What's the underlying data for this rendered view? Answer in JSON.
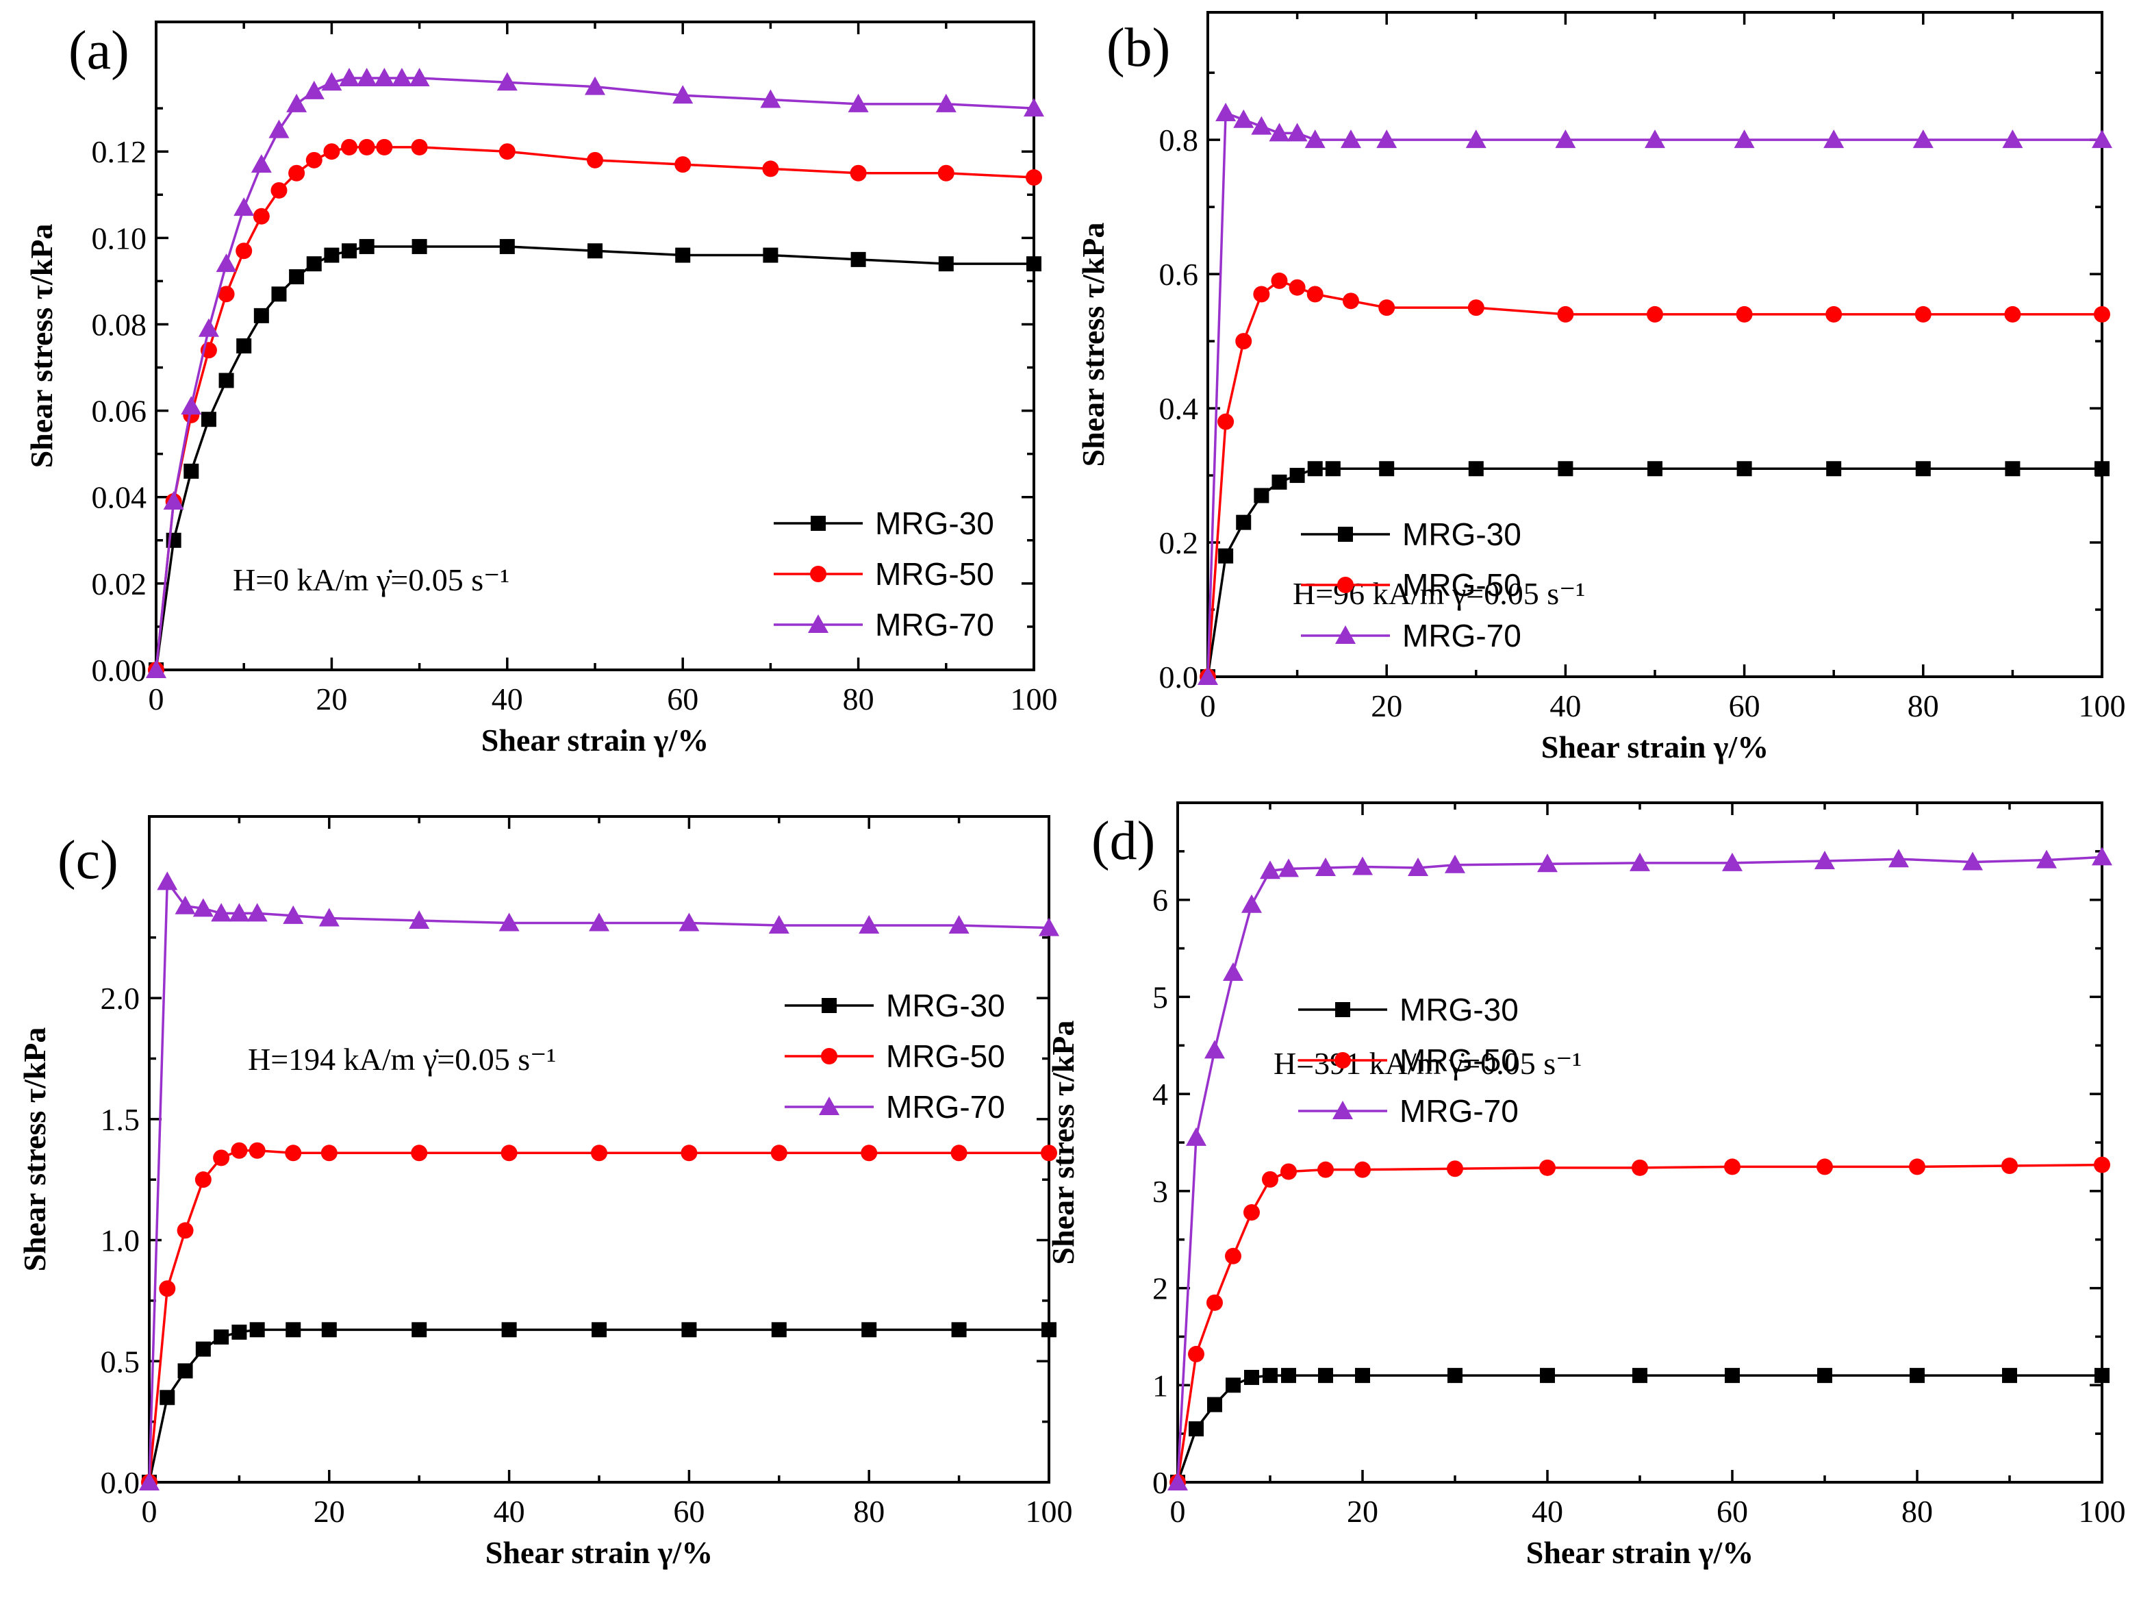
{
  "chart_data": [
    {
      "panel_label": "(a)",
      "type": "line",
      "xlabel": "Shear strain γ/%",
      "ylabel": "Shear stress τ/kPa",
      "xlim": [
        0,
        100
      ],
      "ylim": [
        0,
        0.15
      ],
      "xticks": [
        0,
        20,
        40,
        60,
        80,
        100
      ],
      "yticks": [
        0.0,
        0.02,
        0.04,
        0.06,
        0.08,
        0.1,
        0.12
      ],
      "ytick_decimals": 2,
      "annotation": "H=0 kA/m  γ̇=0.05 s⁻¹",
      "legend": [
        "MRG-30",
        "MRG-50",
        "MRG-70"
      ],
      "series": [
        {
          "name": "MRG-30",
          "color": "#000000",
          "marker": "square",
          "x": [
            0,
            2,
            4,
            6,
            8,
            10,
            12,
            14,
            16,
            18,
            20,
            22,
            24,
            30,
            40,
            50,
            60,
            70,
            80,
            90,
            100
          ],
          "y": [
            0.0,
            0.03,
            0.046,
            0.058,
            0.067,
            0.075,
            0.082,
            0.087,
            0.091,
            0.094,
            0.096,
            0.097,
            0.098,
            0.098,
            0.098,
            0.097,
            0.096,
            0.096,
            0.095,
            0.094,
            0.094
          ]
        },
        {
          "name": "MRG-50",
          "color": "#ff0000",
          "marker": "circle",
          "x": [
            0,
            2,
            4,
            6,
            8,
            10,
            12,
            14,
            16,
            18,
            20,
            22,
            24,
            26,
            30,
            40,
            50,
            60,
            70,
            80,
            90,
            100
          ],
          "y": [
            0.0,
            0.039,
            0.059,
            0.074,
            0.087,
            0.097,
            0.105,
            0.111,
            0.115,
            0.118,
            0.12,
            0.121,
            0.121,
            0.121,
            0.121,
            0.12,
            0.118,
            0.117,
            0.116,
            0.115,
            0.115,
            0.114
          ]
        },
        {
          "name": "MRG-70",
          "color": "#9932cc",
          "marker": "triangle",
          "x": [
            0,
            2,
            4,
            6,
            8,
            10,
            12,
            14,
            16,
            18,
            20,
            22,
            24,
            26,
            28,
            30,
            40,
            50,
            60,
            70,
            80,
            90,
            100
          ],
          "y": [
            0.0,
            0.039,
            0.061,
            0.079,
            0.094,
            0.107,
            0.117,
            0.125,
            0.131,
            0.134,
            0.136,
            0.137,
            0.137,
            0.137,
            0.137,
            0.137,
            0.136,
            0.135,
            0.133,
            0.132,
            0.131,
            0.131,
            0.13
          ]
        }
      ]
    },
    {
      "panel_label": "(b)",
      "type": "line",
      "xlabel": "Shear strain γ/%",
      "ylabel": "Shear stress τ/kPa",
      "xlim": [
        0,
        100
      ],
      "ylim": [
        0,
        0.99
      ],
      "xticks": [
        0,
        20,
        40,
        60,
        80,
        100
      ],
      "yticks": [
        0.0,
        0.2,
        0.4,
        0.6,
        0.8
      ],
      "ytick_decimals": 1,
      "annotation": "H=96 kA/m  γ̇=0.05 s⁻¹",
      "legend": [
        "MRG-30",
        "MRG-50",
        "MRG-70"
      ],
      "series": [
        {
          "name": "MRG-30",
          "color": "#000000",
          "marker": "square",
          "x": [
            0,
            2,
            4,
            6,
            8,
            10,
            12,
            14,
            20,
            30,
            40,
            50,
            60,
            70,
            80,
            90,
            100
          ],
          "y": [
            0.0,
            0.18,
            0.23,
            0.27,
            0.29,
            0.3,
            0.31,
            0.31,
            0.31,
            0.31,
            0.31,
            0.31,
            0.31,
            0.31,
            0.31,
            0.31,
            0.31
          ]
        },
        {
          "name": "MRG-50",
          "color": "#ff0000",
          "marker": "circle",
          "x": [
            0,
            2,
            4,
            6,
            8,
            10,
            12,
            16,
            20,
            30,
            40,
            50,
            60,
            70,
            80,
            90,
            100
          ],
          "y": [
            0.0,
            0.38,
            0.5,
            0.57,
            0.59,
            0.58,
            0.57,
            0.56,
            0.55,
            0.55,
            0.54,
            0.54,
            0.54,
            0.54,
            0.54,
            0.54,
            0.54
          ]
        },
        {
          "name": "MRG-70",
          "color": "#9932cc",
          "marker": "triangle",
          "x": [
            0,
            2,
            4,
            6,
            8,
            10,
            12,
            16,
            20,
            30,
            40,
            50,
            60,
            70,
            80,
            90,
            100
          ],
          "y": [
            0.0,
            0.84,
            0.83,
            0.82,
            0.81,
            0.81,
            0.8,
            0.8,
            0.8,
            0.8,
            0.8,
            0.8,
            0.8,
            0.8,
            0.8,
            0.8,
            0.8
          ]
        }
      ]
    },
    {
      "panel_label": "(c)",
      "type": "line",
      "xlabel": "Shear strain γ/%",
      "ylabel": "Shear stress τ/kPa",
      "xlim": [
        0,
        100
      ],
      "ylim": [
        0,
        2.75
      ],
      "xticks": [
        0,
        20,
        40,
        60,
        80,
        100
      ],
      "yticks": [
        0.0,
        0.5,
        1.0,
        1.5,
        2.0
      ],
      "ytick_decimals": 1,
      "annotation": "H=194 kA/m  γ̇=0.05 s⁻¹",
      "legend": [
        "MRG-30",
        "MRG-50",
        "MRG-70"
      ],
      "series": [
        {
          "name": "MRG-30",
          "color": "#000000",
          "marker": "square",
          "x": [
            0,
            2,
            4,
            6,
            8,
            10,
            12,
            16,
            20,
            30,
            40,
            50,
            60,
            70,
            80,
            90,
            100
          ],
          "y": [
            0.0,
            0.35,
            0.46,
            0.55,
            0.6,
            0.62,
            0.63,
            0.63,
            0.63,
            0.63,
            0.63,
            0.63,
            0.63,
            0.63,
            0.63,
            0.63,
            0.63
          ]
        },
        {
          "name": "MRG-50",
          "color": "#ff0000",
          "marker": "circle",
          "x": [
            0,
            2,
            4,
            6,
            8,
            10,
            12,
            16,
            20,
            30,
            40,
            50,
            60,
            70,
            80,
            90,
            100
          ],
          "y": [
            0.0,
            0.8,
            1.04,
            1.25,
            1.34,
            1.37,
            1.37,
            1.36,
            1.36,
            1.36,
            1.36,
            1.36,
            1.36,
            1.36,
            1.36,
            1.36,
            1.36
          ]
        },
        {
          "name": "MRG-70",
          "color": "#9932cc",
          "marker": "triangle",
          "x": [
            0,
            2,
            4,
            6,
            8,
            10,
            12,
            16,
            20,
            30,
            40,
            50,
            60,
            70,
            80,
            90,
            100
          ],
          "y": [
            0.0,
            2.48,
            2.38,
            2.37,
            2.35,
            2.35,
            2.35,
            2.34,
            2.33,
            2.32,
            2.31,
            2.31,
            2.31,
            2.3,
            2.3,
            2.3,
            2.29
          ]
        }
      ]
    },
    {
      "panel_label": "(d)",
      "type": "line",
      "xlabel": "Shear strain γ/%",
      "ylabel": "Shear stress τ/kPa",
      "xlim": [
        0,
        100
      ],
      "ylim": [
        0,
        7.0
      ],
      "xticks": [
        0,
        20,
        40,
        60,
        80,
        100
      ],
      "yticks": [
        0,
        1,
        2,
        3,
        4,
        5,
        6
      ],
      "ytick_decimals": 0,
      "annotation": "H=391 kA/m  γ̇=0.05 s⁻¹",
      "legend": [
        "MRG-30",
        "MRG-50",
        "MRG-70"
      ],
      "series": [
        {
          "name": "MRG-30",
          "color": "#000000",
          "marker": "square",
          "x": [
            0,
            2,
            4,
            6,
            8,
            10,
            12,
            16,
            20,
            30,
            40,
            50,
            60,
            70,
            80,
            90,
            100
          ],
          "y": [
            0.0,
            0.55,
            0.8,
            1.0,
            1.08,
            1.1,
            1.1,
            1.1,
            1.1,
            1.1,
            1.1,
            1.1,
            1.1,
            1.1,
            1.1,
            1.1,
            1.1
          ]
        },
        {
          "name": "MRG-50",
          "color": "#ff0000",
          "marker": "circle",
          "x": [
            0,
            2,
            4,
            6,
            8,
            10,
            12,
            16,
            20,
            30,
            40,
            50,
            60,
            70,
            80,
            90,
            100
          ],
          "y": [
            0.0,
            1.32,
            1.85,
            2.33,
            2.78,
            3.12,
            3.2,
            3.22,
            3.22,
            3.23,
            3.24,
            3.24,
            3.25,
            3.25,
            3.25,
            3.26,
            3.27
          ]
        },
        {
          "name": "MRG-70",
          "color": "#9932cc",
          "marker": "triangle",
          "x": [
            0,
            2,
            4,
            6,
            8,
            10,
            12,
            16,
            20,
            26,
            30,
            40,
            50,
            60,
            70,
            78,
            86,
            94,
            100
          ],
          "y": [
            0.0,
            3.55,
            4.45,
            5.25,
            5.95,
            6.3,
            6.32,
            6.33,
            6.34,
            6.33,
            6.36,
            6.37,
            6.38,
            6.38,
            6.4,
            6.42,
            6.39,
            6.41,
            6.44
          ]
        }
      ]
    }
  ]
}
